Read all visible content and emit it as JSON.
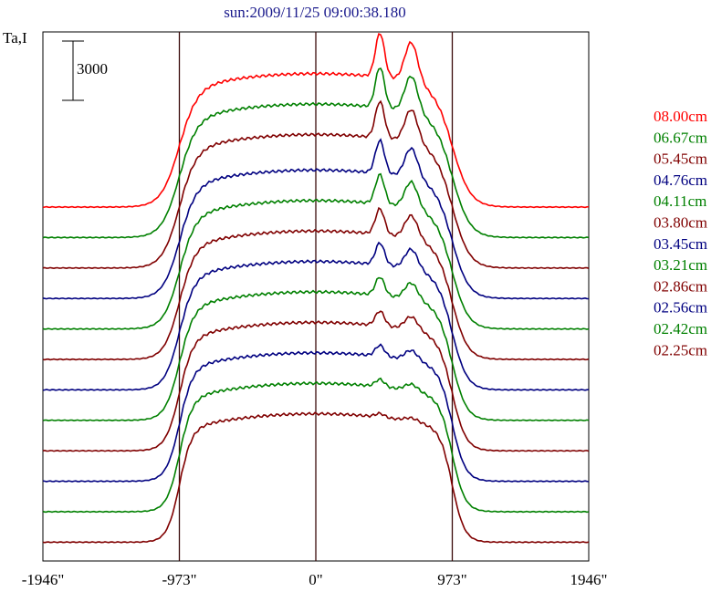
{
  "chart_data": {
    "type": "line",
    "title": "sun:2009/11/25 09:00:38.180",
    "ylabel": "Ta,I",
    "x_ticks": [
      "-1946\"",
      "-973\"",
      "0\"",
      "973\"",
      "1946\""
    ],
    "x_tick_values": [
      -1946,
      -973,
      0,
      973,
      1946
    ],
    "xlim": [
      -1946,
      1946
    ],
    "vertical_lines_x": [
      -973,
      0,
      973
    ],
    "scale_bar": {
      "label": "3000",
      "value": 3000
    },
    "grid": false,
    "legend_position": "right",
    "stacked_offsets": true,
    "series": [
      {
        "name": "08.00cm",
        "color": "#ff0000"
      },
      {
        "name": "06.67cm",
        "color": "#008000"
      },
      {
        "name": "05.45cm",
        "color": "#800000"
      },
      {
        "name": "04.76cm",
        "color": "#000080"
      },
      {
        "name": "04.11cm",
        "color": "#008000"
      },
      {
        "name": "03.80cm",
        "color": "#800000"
      },
      {
        "name": "03.45cm",
        "color": "#000080"
      },
      {
        "name": "03.21cm",
        "color": "#008000"
      },
      {
        "name": "02.86cm",
        "color": "#800000"
      },
      {
        "name": "02.56cm",
        "color": "#000080"
      },
      {
        "name": "02.42cm",
        "color": "#008000"
      },
      {
        "name": "02.25cm",
        "color": "#800000"
      }
    ]
  }
}
